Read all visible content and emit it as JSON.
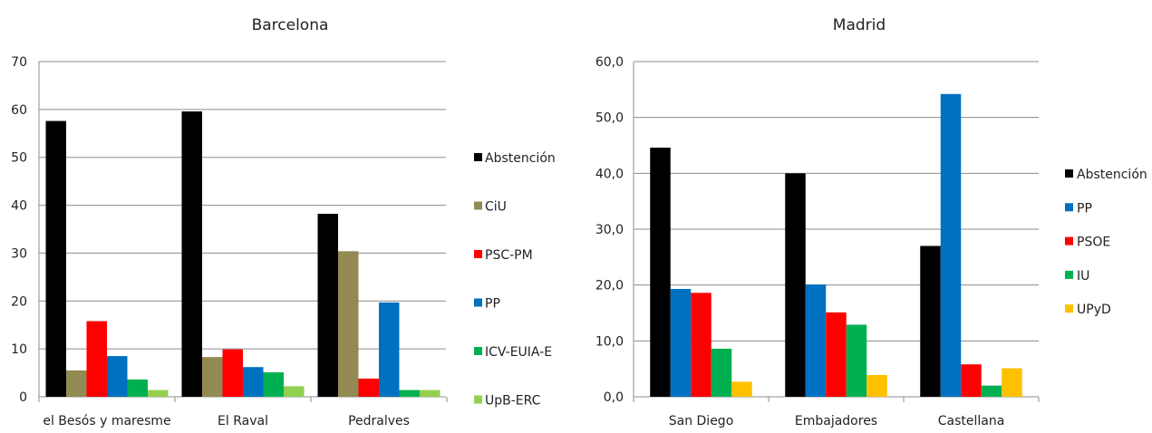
{
  "chart_data": [
    {
      "type": "bar",
      "title": "Barcelona",
      "categories": [
        "el Besós y maresme",
        "El Raval",
        "Pedralves"
      ],
      "yticks": [
        "0",
        "10",
        "20",
        "30",
        "40",
        "50",
        "60",
        "70"
      ],
      "ylim": [
        0,
        70
      ],
      "grid": true,
      "legend_position": "right",
      "series": [
        {
          "name": "Abstención",
          "color": "#000000",
          "values": [
            57.6,
            59.6,
            38.2
          ]
        },
        {
          "name": "CiU",
          "color": "#938953",
          "values": [
            5.5,
            8.3,
            30.4
          ]
        },
        {
          "name": "PSC-PM",
          "color": "#ff0000",
          "values": [
            15.8,
            9.9,
            3.8
          ]
        },
        {
          "name": "PP",
          "color": "#0070c0",
          "values": [
            8.5,
            6.2,
            19.7
          ]
        },
        {
          "name": "ICV-EUIA-E",
          "color": "#00b050",
          "values": [
            3.6,
            5.1,
            1.4
          ]
        },
        {
          "name": "UpB-ERC",
          "color": "#92d050",
          "values": [
            1.4,
            2.2,
            1.4
          ]
        }
      ]
    },
    {
      "type": "bar",
      "title": "Madrid",
      "categories": [
        "San Diego",
        "Embajadores",
        "Castellana"
      ],
      "yticks": [
        "0,0",
        "10,0",
        "20,0",
        "30,0",
        "40,0",
        "50,0",
        "60,0"
      ],
      "ylim": [
        0,
        60
      ],
      "grid": true,
      "legend_position": "right",
      "series": [
        {
          "name": "Abstención",
          "color": "#000000",
          "values": [
            44.6,
            40.0,
            27.0
          ]
        },
        {
          "name": "PP",
          "color": "#0070c0",
          "values": [
            19.3,
            20.1,
            54.2
          ]
        },
        {
          "name": "PSOE",
          "color": "#ff0000",
          "values": [
            18.6,
            15.1,
            5.8
          ]
        },
        {
          "name": "IU",
          "color": "#00b050",
          "values": [
            8.6,
            12.9,
            2.0
          ]
        },
        {
          "name": "UPyD",
          "color": "#ffc000",
          "values": [
            2.7,
            3.9,
            5.1
          ]
        }
      ]
    }
  ]
}
